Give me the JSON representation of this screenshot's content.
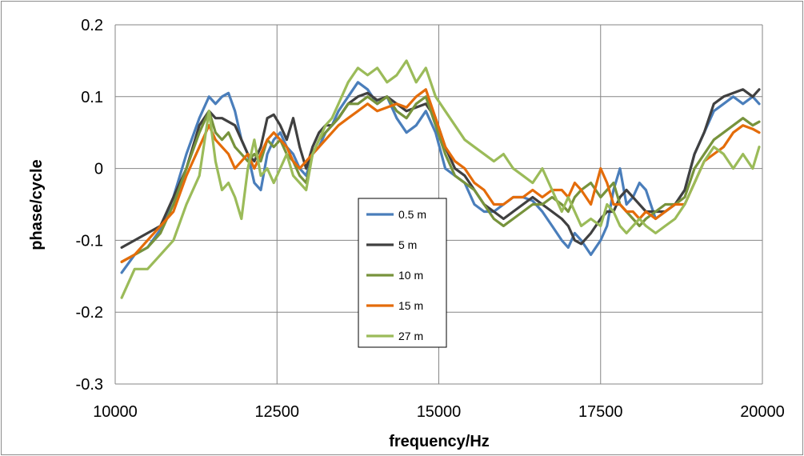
{
  "chart_data": {
    "type": "line",
    "xlabel": "frequency/Hz",
    "ylabel": "phase/cycle",
    "xlim": [
      10000,
      20000
    ],
    "ylim": [
      -0.3,
      0.2
    ],
    "x_ticks": [
      {
        "value": 10000,
        "label": "10000"
      },
      {
        "value": 12500,
        "label": "12500"
      },
      {
        "value": 15000,
        "label": "15000"
      },
      {
        "value": 17500,
        "label": "17500"
      },
      {
        "value": 20000,
        "label": "20000"
      }
    ],
    "y_ticks": [
      {
        "value": 0.2,
        "label": "0.2"
      },
      {
        "value": 0.1,
        "label": "0.1"
      },
      {
        "value": 0,
        "label": "0"
      },
      {
        "value": -0.1,
        "label": "-0.1"
      },
      {
        "value": -0.2,
        "label": "-0.2"
      },
      {
        "value": -0.3,
        "label": "-0.3"
      }
    ],
    "grid": true,
    "legend_position": "center",
    "series": [
      {
        "name": "0.5 m",
        "color": "#4a7ebb",
        "x": [
          10100,
          10300,
          10500,
          10700,
          10900,
          11100,
          11300,
          11450,
          11550,
          11650,
          11750,
          11850,
          11950,
          12050,
          12150,
          12250,
          12350,
          12450,
          12550,
          12650,
          12750,
          12850,
          12950,
          13050,
          13150,
          13250,
          13350,
          13450,
          13600,
          13750,
          13900,
          14050,
          14200,
          14350,
          14500,
          14650,
          14800,
          14950,
          15100,
          15250,
          15400,
          15550,
          15700,
          15850,
          16000,
          16150,
          16300,
          16450,
          16600,
          16750,
          16900,
          17000,
          17100,
          17200,
          17350,
          17500,
          17600,
          17700,
          17800,
          17900,
          18000,
          18100,
          18200,
          18350,
          18500,
          18650,
          18800,
          18950,
          19100,
          19250,
          19400,
          19550,
          19700,
          19850,
          19950
        ],
        "values": [
          -0.145,
          -0.12,
          -0.11,
          -0.085,
          -0.04,
          0.02,
          0.07,
          0.1,
          0.09,
          0.1,
          0.105,
          0.08,
          0.04,
          0.02,
          -0.02,
          -0.03,
          0.02,
          0.04,
          0.05,
          0.03,
          0.02,
          0.0,
          -0.01,
          0.02,
          0.03,
          0.05,
          0.06,
          0.08,
          0.1,
          0.12,
          0.11,
          0.09,
          0.1,
          0.07,
          0.05,
          0.06,
          0.08,
          0.05,
          0.0,
          -0.01,
          -0.02,
          -0.05,
          -0.06,
          -0.06,
          -0.05,
          -0.04,
          -0.04,
          -0.045,
          -0.06,
          -0.08,
          -0.1,
          -0.11,
          -0.09,
          -0.1,
          -0.12,
          -0.1,
          -0.08,
          -0.03,
          0.0,
          -0.05,
          -0.04,
          -0.02,
          -0.03,
          -0.07,
          -0.06,
          -0.05,
          -0.03,
          0.02,
          0.05,
          0.08,
          0.09,
          0.1,
          0.09,
          0.1,
          0.09
        ]
      },
      {
        "name": "5 m",
        "color": "#404040",
        "x": [
          10100,
          10300,
          10500,
          10700,
          10900,
          11100,
          11300,
          11450,
          11550,
          11650,
          11750,
          11850,
          11950,
          12050,
          12150,
          12250,
          12350,
          12450,
          12550,
          12650,
          12750,
          12850,
          12950,
          13050,
          13150,
          13250,
          13350,
          13450,
          13600,
          13750,
          13900,
          14050,
          14200,
          14350,
          14500,
          14650,
          14800,
          14950,
          15100,
          15250,
          15400,
          15550,
          15700,
          15850,
          16000,
          16150,
          16300,
          16450,
          16600,
          16750,
          16900,
          17000,
          17100,
          17200,
          17350,
          17500,
          17600,
          17700,
          17800,
          17900,
          18000,
          18100,
          18200,
          18350,
          18500,
          18650,
          18800,
          18950,
          19100,
          19250,
          19400,
          19550,
          19700,
          19850,
          19950
        ],
        "values": [
          -0.11,
          -0.1,
          -0.09,
          -0.08,
          -0.04,
          0.0,
          0.06,
          0.08,
          0.07,
          0.07,
          0.065,
          0.06,
          0.04,
          0.02,
          0.01,
          0.03,
          0.07,
          0.075,
          0.06,
          0.04,
          0.07,
          0.03,
          0.0,
          0.03,
          0.05,
          0.06,
          0.06,
          0.07,
          0.09,
          0.1,
          0.105,
          0.095,
          0.1,
          0.09,
          0.08,
          0.085,
          0.09,
          0.07,
          0.03,
          0.0,
          -0.01,
          -0.03,
          -0.05,
          -0.06,
          -0.07,
          -0.06,
          -0.05,
          -0.04,
          -0.05,
          -0.06,
          -0.07,
          -0.08,
          -0.1,
          -0.105,
          -0.09,
          -0.07,
          -0.06,
          -0.06,
          -0.04,
          -0.03,
          -0.04,
          -0.05,
          -0.06,
          -0.06,
          -0.06,
          -0.05,
          -0.03,
          0.02,
          0.05,
          0.09,
          0.1,
          0.105,
          0.11,
          0.1,
          0.11
        ]
      },
      {
        "name": "10 m",
        "color": "#77933c",
        "x": [
          10100,
          10300,
          10500,
          10700,
          10900,
          11100,
          11300,
          11450,
          11550,
          11650,
          11750,
          11850,
          11950,
          12050,
          12150,
          12250,
          12350,
          12450,
          12550,
          12650,
          12750,
          12850,
          12950,
          13050,
          13150,
          13250,
          13350,
          13450,
          13600,
          13750,
          13900,
          14050,
          14200,
          14350,
          14500,
          14650,
          14800,
          14950,
          15100,
          15250,
          15400,
          15550,
          15700,
          15850,
          16000,
          16150,
          16300,
          16450,
          16600,
          16750,
          16900,
          17000,
          17100,
          17200,
          17350,
          17500,
          17600,
          17700,
          17800,
          17900,
          18000,
          18100,
          18200,
          18350,
          18500,
          18650,
          18800,
          18950,
          19100,
          19250,
          19400,
          19550,
          19700,
          19850,
          19950
        ],
        "values": [
          -0.13,
          -0.12,
          -0.11,
          -0.09,
          -0.05,
          0.0,
          0.05,
          0.08,
          0.05,
          0.04,
          0.05,
          0.03,
          0.02,
          0.01,
          0.02,
          0.01,
          0.04,
          0.03,
          0.04,
          0.02,
          0.01,
          -0.01,
          -0.02,
          0.02,
          0.04,
          0.05,
          0.06,
          0.07,
          0.09,
          0.09,
          0.1,
          0.09,
          0.1,
          0.08,
          0.07,
          0.09,
          0.1,
          0.06,
          0.02,
          -0.01,
          -0.02,
          -0.03,
          -0.05,
          -0.07,
          -0.08,
          -0.07,
          -0.06,
          -0.05,
          -0.05,
          -0.04,
          -0.05,
          -0.06,
          -0.04,
          -0.03,
          -0.02,
          -0.04,
          -0.03,
          -0.02,
          -0.05,
          -0.06,
          -0.07,
          -0.08,
          -0.07,
          -0.06,
          -0.05,
          -0.05,
          -0.04,
          0.0,
          0.02,
          0.04,
          0.05,
          0.06,
          0.07,
          0.06,
          0.065
        ]
      },
      {
        "name": "15 m",
        "color": "#e46c0a",
        "x": [
          10100,
          10300,
          10500,
          10700,
          10900,
          11100,
          11300,
          11450,
          11550,
          11650,
          11750,
          11850,
          11950,
          12050,
          12150,
          12250,
          12350,
          12450,
          12550,
          12650,
          12750,
          12850,
          12950,
          13050,
          13150,
          13250,
          13350,
          13450,
          13600,
          13750,
          13900,
          14050,
          14200,
          14350,
          14500,
          14650,
          14800,
          14950,
          15100,
          15250,
          15400,
          15550,
          15700,
          15850,
          16000,
          16150,
          16300,
          16450,
          16600,
          16750,
          16900,
          17000,
          17100,
          17200,
          17350,
          17500,
          17600,
          17700,
          17800,
          17900,
          18000,
          18100,
          18200,
          18350,
          18500,
          18650,
          18800,
          18950,
          19100,
          19250,
          19400,
          19550,
          19700,
          19850,
          19950
        ],
        "values": [
          -0.13,
          -0.12,
          -0.1,
          -0.08,
          -0.06,
          -0.01,
          0.03,
          0.06,
          0.04,
          0.03,
          0.02,
          0.0,
          0.01,
          0.02,
          0.0,
          0.02,
          0.04,
          0.05,
          0.04,
          0.03,
          0.01,
          0.0,
          0.01,
          0.02,
          0.03,
          0.04,
          0.05,
          0.06,
          0.07,
          0.08,
          0.09,
          0.08,
          0.085,
          0.09,
          0.085,
          0.1,
          0.11,
          0.07,
          0.03,
          0.01,
          0.0,
          -0.02,
          -0.03,
          -0.05,
          -0.05,
          -0.04,
          -0.04,
          -0.03,
          -0.04,
          -0.03,
          -0.03,
          -0.04,
          -0.02,
          -0.03,
          -0.05,
          0.0,
          -0.02,
          -0.05,
          -0.05,
          -0.06,
          -0.06,
          -0.07,
          -0.06,
          -0.07,
          -0.06,
          -0.05,
          -0.05,
          -0.02,
          0.01,
          0.02,
          0.03,
          0.05,
          0.06,
          0.055,
          0.05
        ]
      },
      {
        "name": "27 m",
        "color": "#9bbb59",
        "x": [
          10100,
          10300,
          10500,
          10700,
          10900,
          11100,
          11300,
          11450,
          11550,
          11650,
          11750,
          11850,
          11950,
          12050,
          12150,
          12250,
          12350,
          12450,
          12550,
          12650,
          12750,
          12850,
          12950,
          13050,
          13150,
          13250,
          13350,
          13450,
          13600,
          13750,
          13900,
          14050,
          14200,
          14350,
          14500,
          14650,
          14800,
          14950,
          15100,
          15250,
          15400,
          15550,
          15700,
          15850,
          16000,
          16150,
          16300,
          16450,
          16600,
          16750,
          16900,
          17000,
          17100,
          17200,
          17350,
          17500,
          17600,
          17700,
          17800,
          17900,
          18000,
          18100,
          18200,
          18350,
          18500,
          18650,
          18800,
          18950,
          19100,
          19250,
          19400,
          19550,
          19700,
          19850,
          19950
        ],
        "values": [
          -0.18,
          -0.14,
          -0.14,
          -0.12,
          -0.1,
          -0.05,
          -0.01,
          0.08,
          0.01,
          -0.03,
          -0.02,
          -0.04,
          -0.07,
          0.0,
          0.04,
          -0.01,
          0.0,
          -0.02,
          0.0,
          0.02,
          -0.01,
          -0.02,
          -0.03,
          0.02,
          0.04,
          0.06,
          0.07,
          0.09,
          0.12,
          0.14,
          0.13,
          0.14,
          0.12,
          0.13,
          0.15,
          0.12,
          0.14,
          0.1,
          0.08,
          0.06,
          0.04,
          0.03,
          0.02,
          0.01,
          0.02,
          0.0,
          -0.01,
          -0.02,
          0.0,
          -0.03,
          -0.06,
          -0.04,
          -0.06,
          -0.08,
          -0.07,
          -0.08,
          -0.05,
          -0.06,
          -0.08,
          -0.09,
          -0.08,
          -0.07,
          -0.08,
          -0.09,
          -0.08,
          -0.07,
          -0.05,
          -0.02,
          0.01,
          0.03,
          0.02,
          0.0,
          0.02,
          0.0,
          0.03
        ]
      }
    ]
  }
}
